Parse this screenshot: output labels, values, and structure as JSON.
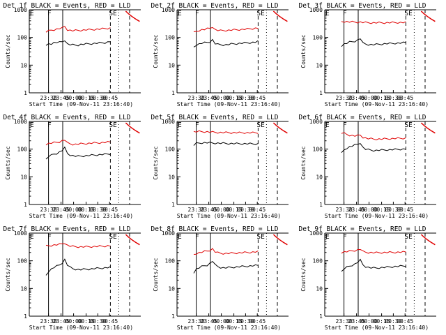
{
  "chart_data": [
    {
      "type": "line",
      "title": "Det 1f BLACK = Events, RED = LLD",
      "xlabel": "Start Time (09-Nov-11 23:16:40)",
      "ylabel": "Counts/sec",
      "yscale": "log",
      "ylim": [
        1,
        1000
      ],
      "yticks": [
        "1",
        "10",
        "100",
        "1000"
      ],
      "xticks": [
        "23:30",
        "23:45",
        "00:00",
        "00:15",
        "00:30",
        "00:45"
      ],
      "markers": [
        "E",
        "F",
        "SE"
      ],
      "series": [
        {
          "color": "#000000",
          "values": [
            48,
            60,
            60,
            65,
            66,
            66,
            70,
            80,
            58,
            55,
            54,
            53,
            53,
            56,
            57,
            58,
            59,
            60,
            61,
            62,
            63,
            64,
            65,
            68,
            72
          ]
        },
        {
          "color": "#e00000",
          "values": [
            160,
            170,
            185,
            190,
            200,
            210,
            215,
            250,
            190,
            180,
            175,
            178,
            180,
            182,
            185,
            188,
            190,
            192,
            195,
            198,
            200,
            205,
            210,
            215,
            220
          ]
        }
      ]
    },
    {
      "type": "line",
      "title": "Det 2f BLACK = Events, RED = LLD",
      "xlabel": "Start Time (09-Nov-11 23:16:40)",
      "ylabel": "Counts/sec",
      "yscale": "log",
      "ylim": [
        1,
        1000
      ],
      "yticks": [
        "1",
        "10",
        "100",
        "1000"
      ],
      "xticks": [
        "23:30",
        "23:45",
        "00:00",
        "00:15",
        "00:30",
        "00:45"
      ],
      "markers": [
        "E",
        "F",
        "SE"
      ],
      "series": [
        {
          "color": "#000000",
          "values": [
            45,
            55,
            58,
            62,
            64,
            66,
            70,
            82,
            60,
            56,
            55,
            54,
            54,
            56,
            58,
            59,
            60,
            61,
            62,
            63,
            64,
            65,
            66,
            68,
            72
          ]
        },
        {
          "color": "#e00000",
          "values": [
            150,
            165,
            180,
            190,
            195,
            205,
            215,
            245,
            190,
            180,
            175,
            178,
            180,
            182,
            185,
            188,
            190,
            192,
            195,
            198,
            200,
            205,
            210,
            215,
            220
          ]
        }
      ]
    },
    {
      "type": "line",
      "title": "Det 3f BLACK = Events, RED = LLD",
      "xlabel": "Start Time (09-Nov-11 23:16:40)",
      "ylabel": "Counts/sec",
      "yscale": "log",
      "ylim": [
        1,
        1000
      ],
      "yticks": [
        "1",
        "10",
        "100",
        "1000"
      ],
      "xticks": [
        "23:30",
        "23:45",
        "00:00",
        "00:15",
        "00:30",
        "00:45"
      ],
      "markers": [
        "E",
        "F",
        "SE"
      ],
      "series": [
        {
          "color": "#000000",
          "values": [
            50,
            58,
            62,
            68,
            70,
            74,
            80,
            92,
            62,
            58,
            56,
            55,
            55,
            56,
            57,
            58,
            59,
            60,
            60,
            61,
            62,
            62,
            63,
            64,
            66
          ]
        },
        {
          "color": "#e00000",
          "values": [
            380,
            375,
            370,
            365,
            362,
            360,
            358,
            360,
            350,
            345,
            342,
            340,
            340,
            340,
            340,
            340,
            340,
            341,
            342,
            343,
            344,
            345,
            346,
            347,
            350
          ]
        }
      ]
    },
    {
      "type": "line",
      "title": "Det 4f BLACK = Events, RED = LLD",
      "xlabel": "Start Time (09-Nov-11 23:16:40)",
      "ylabel": "Counts/sec",
      "yscale": "log",
      "ylim": [
        1,
        1000
      ],
      "yticks": [
        "1",
        "10",
        "100",
        "1000"
      ],
      "xticks": [
        "23:30",
        "23:45",
        "00:00",
        "00:15",
        "00:30",
        "00:45"
      ],
      "markers": [
        "E",
        "F",
        "SE"
      ],
      "series": [
        {
          "color": "#000000",
          "values": [
            42,
            55,
            60,
            66,
            70,
            78,
            90,
            110,
            70,
            62,
            58,
            56,
            55,
            56,
            57,
            58,
            59,
            60,
            61,
            62,
            63,
            64,
            65,
            66,
            68
          ]
        },
        {
          "color": "#e00000",
          "values": [
            150,
            160,
            165,
            170,
            175,
            185,
            200,
            215,
            165,
            155,
            150,
            150,
            152,
            155,
            158,
            160,
            162,
            164,
            166,
            168,
            170,
            172,
            175,
            178,
            180
          ]
        }
      ]
    },
    {
      "type": "line",
      "title": "Det 5f BLACK = Events, RED = LLD",
      "xlabel": "Start Time (09-Nov-11 23:16:40)",
      "ylabel": "Counts/sec",
      "yscale": "log",
      "ylim": [
        1,
        1000
      ],
      "yticks": [
        "1",
        "10",
        "100",
        "1000"
      ],
      "xticks": [
        "23:30",
        "23:45",
        "00:00",
        "00:15",
        "00:30",
        "00:45"
      ],
      "markers": [
        "E",
        "F",
        "SE"
      ],
      "series": [
        {
          "color": "#000000",
          "values": [
            140,
            160,
            165,
            168,
            170,
            170,
            168,
            166,
            165,
            164,
            163,
            162,
            161,
            160,
            160,
            159,
            158,
            158,
            157,
            157,
            156,
            156,
            155,
            155,
            155
          ]
        },
        {
          "color": "#e00000",
          "values": [
            420,
            425,
            430,
            428,
            425,
            420,
            415,
            410,
            405,
            400,
            398,
            396,
            395,
            394,
            393,
            392,
            392,
            391,
            391,
            390,
            390,
            390,
            390,
            390,
            390
          ]
        }
      ]
    },
    {
      "type": "line",
      "title": "Det 6f BLACK = Events, RED = LLD",
      "xlabel": "Start Time (09-Nov-11 23:16:40)",
      "ylabel": "Counts/sec",
      "yscale": "log",
      "ylim": [
        1,
        1000
      ],
      "yticks": [
        "1",
        "10",
        "100",
        "1000"
      ],
      "xticks": [
        "23:30",
        "23:45",
        "00:00",
        "00:15",
        "00:30",
        "00:45"
      ],
      "markers": [
        "E",
        "F",
        "SE"
      ],
      "series": [
        {
          "color": "#000000",
          "values": [
            70,
            95,
            110,
            120,
            130,
            140,
            150,
            170,
            115,
            100,
            95,
            92,
            90,
            90,
            91,
            92,
            93,
            94,
            95,
            96,
            97,
            98,
            99,
            100,
            102
          ]
        },
        {
          "color": "#e00000",
          "values": [
            380,
            370,
            340,
            320,
            310,
            300,
            305,
            320,
            270,
            250,
            240,
            235,
            230,
            230,
            230,
            232,
            234,
            236,
            238,
            240,
            242,
            244,
            246,
            248,
            250
          ]
        }
      ]
    },
    {
      "type": "line",
      "title": "Det 7f BLACK = Events, RED = LLD",
      "xlabel": "Start Time (09-Nov-11 23:16:40)",
      "ylabel": "Counts/sec",
      "yscale": "log",
      "ylim": [
        1,
        1000
      ],
      "yticks": [
        "1",
        "10",
        "100",
        "1000"
      ],
      "xticks": [
        "23:30",
        "23:45",
        "00:00",
        "00:15",
        "00:30",
        "00:45"
      ],
      "markers": [
        "E",
        "F",
        "SE"
      ],
      "series": [
        {
          "color": "#000000",
          "values": [
            30,
            42,
            50,
            58,
            64,
            70,
            85,
            110,
            70,
            58,
            52,
            50,
            48,
            48,
            49,
            50,
            50,
            51,
            52,
            53,
            54,
            55,
            56,
            57,
            58
          ]
        },
        {
          "color": "#e00000",
          "values": [
            340,
            350,
            360,
            370,
            380,
            390,
            410,
            440,
            360,
            340,
            330,
            325,
            320,
            318,
            318,
            320,
            322,
            325,
            328,
            330,
            333,
            336,
            340,
            345,
            350
          ]
        }
      ]
    },
    {
      "type": "line",
      "title": "Det 8f BLACK = Events, RED = LLD",
      "xlabel": "Start Time (09-Nov-11 23:16:40)",
      "ylabel": "Counts/sec",
      "yscale": "log",
      "ylim": [
        1,
        1000
      ],
      "yticks": [
        "1",
        "10",
        "100",
        "1000"
      ],
      "xticks": [
        "23:30",
        "23:45",
        "00:00",
        "00:15",
        "00:30",
        "00:45"
      ],
      "markers": [
        "E",
        "F",
        "SE"
      ],
      "series": [
        {
          "color": "#000000",
          "values": [
            38,
            50,
            56,
            62,
            66,
            70,
            80,
            98,
            70,
            62,
            58,
            56,
            56,
            57,
            58,
            59,
            60,
            61,
            62,
            63,
            64,
            65,
            66,
            67,
            68
          ]
        },
        {
          "color": "#e00000",
          "values": [
            170,
            185,
            195,
            205,
            215,
            225,
            240,
            270,
            210,
            195,
            188,
            185,
            185,
            186,
            188,
            190,
            192,
            194,
            196,
            198,
            200,
            203,
            206,
            210,
            214
          ]
        }
      ]
    },
    {
      "type": "line",
      "title": "Det 9f BLACK = Events, RED = LLD",
      "xlabel": "Start Time (09-Nov-11 23:16:40)",
      "ylabel": "Counts/sec",
      "yscale": "log",
      "ylim": [
        1,
        1000
      ],
      "yticks": [
        "1",
        "10",
        "100",
        "1000"
      ],
      "xticks": [
        "23:30",
        "23:45",
        "00:00",
        "00:15",
        "00:30",
        "00:45"
      ],
      "markers": [
        "E",
        "F",
        "SE"
      ],
      "series": [
        {
          "color": "#000000",
          "values": [
            40,
            52,
            58,
            64,
            70,
            76,
            88,
            105,
            72,
            62,
            58,
            56,
            55,
            55,
            56,
            57,
            58,
            59,
            60,
            61,
            62,
            63,
            64,
            65,
            66
          ]
        },
        {
          "color": "#e00000",
          "values": [
            200,
            210,
            215,
            220,
            228,
            235,
            245,
            265,
            215,
            205,
            200,
            198,
            196,
            196,
            197,
            198,
            199,
            200,
            201,
            202,
            203,
            204,
            205,
            206,
            208
          ]
        }
      ]
    }
  ]
}
